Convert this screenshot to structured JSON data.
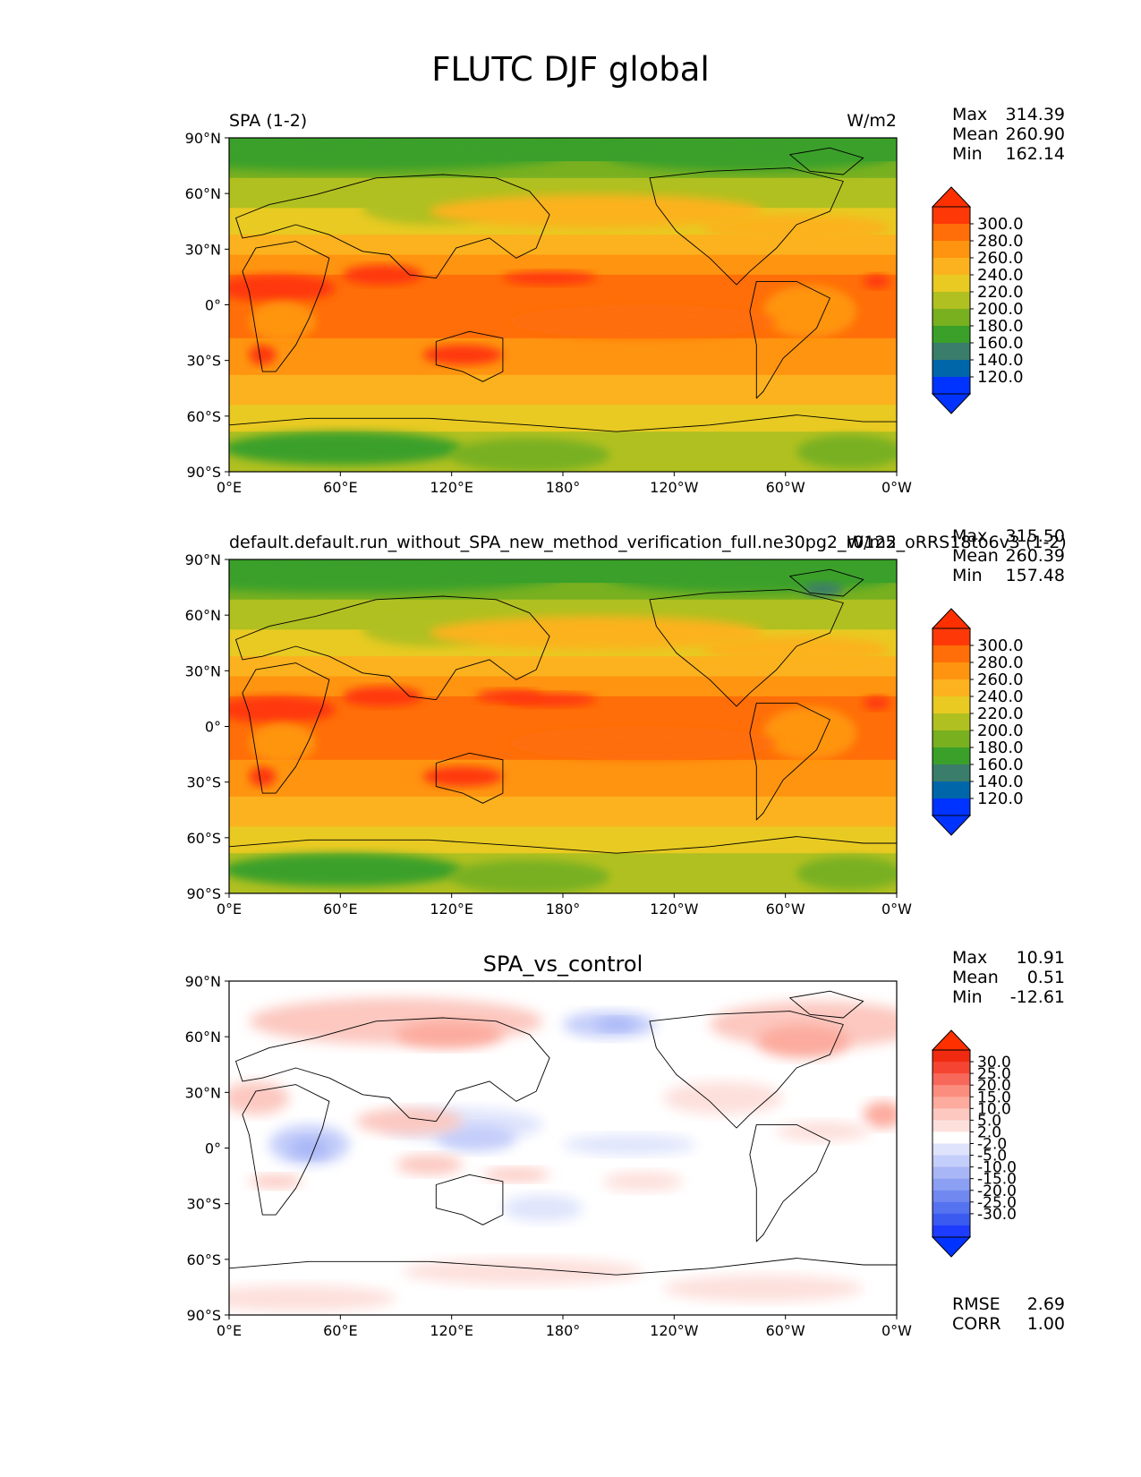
{
  "figure": {
    "title": "FLUTC DJF global"
  },
  "axes": {
    "lat_ticks": [
      "90°N",
      "60°N",
      "30°N",
      "0°",
      "30°S",
      "60°S",
      "90°S"
    ],
    "lon_ticks": [
      "0°E",
      "60°E",
      "120°E",
      "180°",
      "120°W",
      "60°W",
      "0°W"
    ]
  },
  "colors": {
    "main_levels": [
      "#0033ff",
      "#0066aa",
      "#3a7d6a",
      "#3aa02a",
      "#78b020",
      "#b0c020",
      "#e8ca22",
      "#fbb21e",
      "#ff9410",
      "#ff6e08",
      "#ff3808"
    ],
    "diff_levels": [
      "#1e3cff",
      "#3a5af0",
      "#5572f0",
      "#7088f0",
      "#8ca0f3",
      "#a8b6f6",
      "#c4cefa",
      "#dfe4fc",
      "#ffffff",
      "#fde0dc",
      "#fcc8c0",
      "#fcab9e",
      "#fb8d7e",
      "#f8685a",
      "#f54532",
      "#f02a10"
    ],
    "max_arrow": "#ff3000",
    "min_arrow": "#0033ff"
  },
  "panels": [
    {
      "id": "test",
      "left_title": "SPA (1-2)",
      "center_title": "",
      "right_title": "W/m2",
      "stats": {
        "labels": [
          "Max",
          "Mean",
          "Min"
        ],
        "values": [
          "314.39",
          "260.90",
          "162.14"
        ]
      },
      "colorbar": {
        "type": "main",
        "ticks": [
          "300.0",
          "280.0",
          "260.0",
          "240.0",
          "220.0",
          "200.0",
          "180.0",
          "160.0",
          "140.0",
          "120.0"
        ]
      }
    },
    {
      "id": "ref",
      "left_title": "default.default.run_without_SPA_new_method_verification_full.ne30pg2_r0125_oRRS18to6v3 (1-2)",
      "center_title": "",
      "right_title": "W/m2",
      "stats": {
        "labels": [
          "Max",
          "Mean",
          "Min"
        ],
        "values": [
          "315.50",
          "260.39",
          "157.48"
        ]
      },
      "colorbar": {
        "type": "main",
        "ticks": [
          "300.0",
          "280.0",
          "260.0",
          "240.0",
          "220.0",
          "200.0",
          "180.0",
          "160.0",
          "140.0",
          "120.0"
        ]
      }
    },
    {
      "id": "diff",
      "left_title": "",
      "center_title": "SPA_vs_control",
      "right_title": "",
      "stats": {
        "labels": [
          "Max",
          "Mean",
          "Min"
        ],
        "values": [
          "10.91",
          "0.51",
          "-12.61"
        ]
      },
      "colorbar": {
        "type": "diff",
        "ticks": [
          "30.0",
          "25.0",
          "20.0",
          "15.0",
          "10.0",
          "5.0",
          "2.0",
          "-2.0",
          "-5.0",
          "-10.0",
          "-15.0",
          "-20.0",
          "-25.0",
          "-30.0"
        ]
      },
      "extra_stats": {
        "labels": [
          "RMSE",
          "CORR"
        ],
        "values": [
          "2.69",
          "1.00"
        ]
      }
    }
  ]
}
